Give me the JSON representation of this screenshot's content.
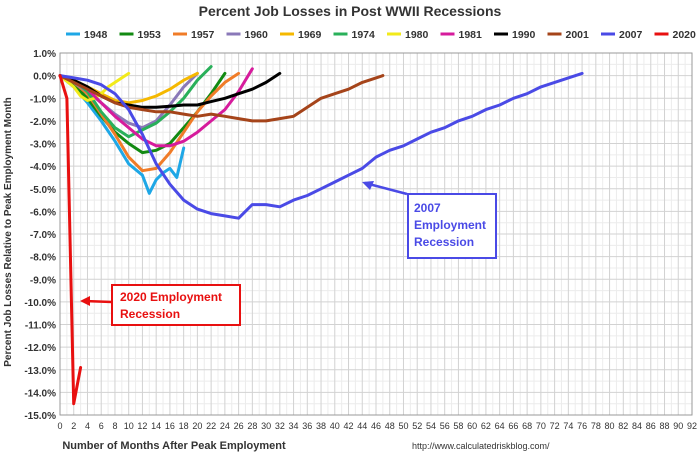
{
  "chart_data": {
    "type": "line",
    "title": "Percent Job Losses in Post WWII Recessions",
    "xlabel": "Number of Months After Peak Employment",
    "ylabel": "Percent Job Losses Relative to Peak Employment Month",
    "source": "http://www.calculatedriskblog.com/",
    "xlim": [
      0,
      92
    ],
    "ylim": [
      -15,
      1
    ],
    "x_ticks": [
      0,
      2,
      4,
      6,
      8,
      10,
      12,
      14,
      16,
      18,
      20,
      22,
      24,
      26,
      28,
      30,
      32,
      34,
      36,
      38,
      40,
      42,
      44,
      46,
      48,
      50,
      52,
      54,
      56,
      58,
      60,
      62,
      64,
      66,
      68,
      70,
      72,
      74,
      76,
      78,
      80,
      82,
      84,
      86,
      88,
      90,
      92
    ],
    "y_ticks": [
      1,
      0,
      -1,
      -2,
      -3,
      -4,
      -5,
      -6,
      -7,
      -8,
      -9,
      -10,
      -11,
      -12,
      -13,
      -14,
      -15
    ],
    "y_tick_labels": [
      "1.0%",
      "0.0%",
      "-1.0%",
      "-2.0%",
      "-3.0%",
      "-4.0%",
      "-5.0%",
      "-6.0%",
      "-7.0%",
      "-8.0%",
      "-9.0%",
      "-10.0%",
      "-11.0%",
      "-12.0%",
      "-13.0%",
      "-14.0%",
      "-15.0%"
    ],
    "grid": true,
    "legend_position": "top",
    "series": [
      {
        "name": "1948",
        "color": "#1ea7e6",
        "x": [
          0,
          2,
          4,
          6,
          8,
          10,
          12,
          13,
          14,
          15,
          16,
          17,
          18
        ],
        "y": [
          0,
          -0.5,
          -1.2,
          -2.0,
          -2.9,
          -3.9,
          -4.4,
          -5.2,
          -4.6,
          -4.3,
          -4.1,
          -4.5,
          -3.2
        ]
      },
      {
        "name": "1953",
        "color": "#128a12",
        "x": [
          0,
          2,
          4,
          6,
          8,
          10,
          12,
          14,
          16,
          18,
          20,
          22,
          24
        ],
        "y": [
          0,
          -0.4,
          -1.0,
          -1.8,
          -2.5,
          -3.0,
          -3.4,
          -3.3,
          -3.0,
          -2.3,
          -1.6,
          -0.8,
          0.1
        ]
      },
      {
        "name": "1957",
        "color": "#f07c28",
        "x": [
          0,
          2,
          4,
          6,
          8,
          10,
          12,
          14,
          16,
          18,
          20,
          22,
          24,
          26
        ],
        "y": [
          0,
          -0.3,
          -0.8,
          -1.7,
          -2.6,
          -3.6,
          -4.2,
          -4.1,
          -3.4,
          -2.5,
          -1.6,
          -0.9,
          -0.3,
          0.1
        ]
      },
      {
        "name": "1960",
        "color": "#8a78b8",
        "x": [
          0,
          2,
          4,
          6,
          8,
          10,
          12,
          14,
          16,
          18,
          20
        ],
        "y": [
          0,
          -0.3,
          -0.7,
          -1.2,
          -1.7,
          -2.1,
          -2.3,
          -2.0,
          -1.3,
          -0.5,
          0.1
        ]
      },
      {
        "name": "1969",
        "color": "#f5b800",
        "x": [
          0,
          2,
          4,
          6,
          8,
          10,
          12,
          14,
          16,
          18,
          20
        ],
        "y": [
          0,
          -0.2,
          -0.5,
          -0.8,
          -1.1,
          -1.2,
          -1.1,
          -0.9,
          -0.6,
          -0.2,
          0.1
        ]
      },
      {
        "name": "1974",
        "color": "#29b05a",
        "x": [
          0,
          2,
          4,
          6,
          8,
          10,
          12,
          14,
          16,
          18,
          20,
          22
        ],
        "y": [
          0,
          -0.2,
          -0.7,
          -1.6,
          -2.3,
          -2.7,
          -2.4,
          -2.1,
          -1.6,
          -1.0,
          -0.2,
          0.4
        ]
      },
      {
        "name": "1980",
        "color": "#f2ea1a",
        "x": [
          0,
          2,
          3,
          4,
          5,
          6,
          7,
          8,
          9,
          10
        ],
        "y": [
          0,
          -0.5,
          -0.9,
          -1.1,
          -1.0,
          -0.8,
          -0.5,
          -0.3,
          -0.1,
          0.1
        ]
      },
      {
        "name": "1981",
        "color": "#d61b9c",
        "x": [
          0,
          2,
          4,
          6,
          8,
          10,
          12,
          14,
          16,
          18,
          20,
          22,
          24,
          26,
          28
        ],
        "y": [
          0,
          -0.2,
          -0.6,
          -1.2,
          -1.8,
          -2.3,
          -2.8,
          -3.1,
          -3.1,
          -2.9,
          -2.5,
          -2.0,
          -1.5,
          -0.7,
          0.3
        ]
      },
      {
        "name": "1990",
        "color": "#000000",
        "x": [
          0,
          2,
          4,
          6,
          8,
          10,
          12,
          14,
          16,
          18,
          20,
          22,
          24,
          26,
          28,
          30,
          32
        ],
        "y": [
          0,
          -0.2,
          -0.5,
          -0.9,
          -1.2,
          -1.3,
          -1.4,
          -1.4,
          -1.35,
          -1.3,
          -1.3,
          -1.15,
          -1.0,
          -0.8,
          -0.6,
          -0.3,
          0.1
        ]
      },
      {
        "name": "2001",
        "color": "#a5441a",
        "x": [
          0,
          2,
          4,
          6,
          8,
          10,
          12,
          14,
          16,
          18,
          20,
          22,
          24,
          26,
          28,
          30,
          32,
          34,
          36,
          38,
          40,
          42,
          44,
          46,
          47
        ],
        "y": [
          0,
          -0.3,
          -0.6,
          -0.9,
          -1.2,
          -1.4,
          -1.5,
          -1.6,
          -1.6,
          -1.7,
          -1.8,
          -1.7,
          -1.8,
          -1.9,
          -2.0,
          -2.0,
          -1.9,
          -1.8,
          -1.4,
          -1.0,
          -0.8,
          -0.6,
          -0.3,
          -0.1,
          0.0
        ]
      },
      {
        "name": "2007",
        "color": "#4a4ae6",
        "x": [
          0,
          2,
          4,
          6,
          8,
          10,
          12,
          14,
          16,
          18,
          20,
          22,
          24,
          26,
          28,
          30,
          32,
          34,
          36,
          38,
          40,
          42,
          44,
          46,
          48,
          50,
          52,
          54,
          56,
          58,
          60,
          62,
          64,
          66,
          68,
          70,
          72,
          74,
          76
        ],
        "y": [
          0,
          -0.1,
          -0.2,
          -0.4,
          -0.8,
          -1.5,
          -2.6,
          -3.9,
          -4.8,
          -5.5,
          -5.9,
          -6.1,
          -6.2,
          -6.3,
          -5.7,
          -5.7,
          -5.8,
          -5.5,
          -5.3,
          -5.0,
          -4.7,
          -4.4,
          -4.1,
          -3.6,
          -3.3,
          -3.1,
          -2.8,
          -2.5,
          -2.3,
          -2.0,
          -1.8,
          -1.5,
          -1.3,
          -1.0,
          -0.8,
          -0.5,
          -0.3,
          -0.1,
          0.1
        ]
      },
      {
        "name": "2020",
        "color": "#e81010",
        "x": [
          0,
          1,
          2,
          3
        ],
        "y": [
          0,
          -1.0,
          -14.5,
          -12.9
        ]
      }
    ],
    "annotations": [
      {
        "text": "2007 Employment Recession",
        "color": "#4a4ae6"
      },
      {
        "text": "2020 Employment Recession",
        "color": "#e81010"
      }
    ]
  }
}
